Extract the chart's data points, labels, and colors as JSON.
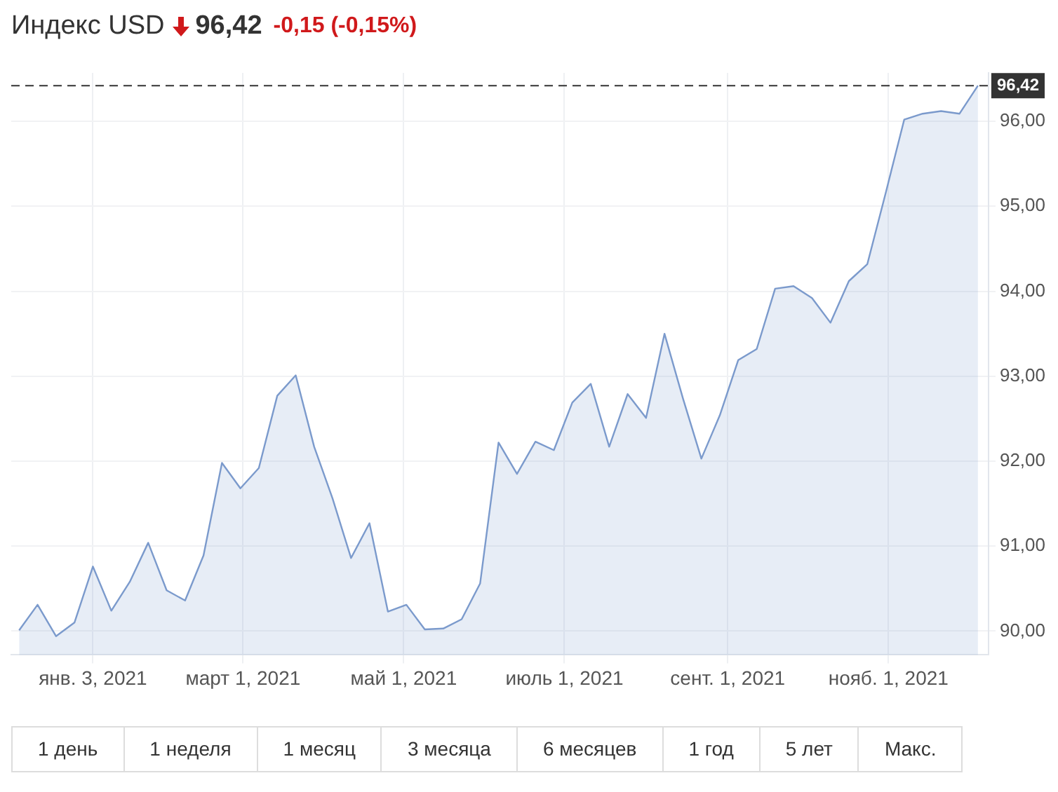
{
  "chart_data": {
    "type": "area",
    "title": "Индекс USD",
    "annotations": [
      "96,42",
      "-0,15 (-0,15%)",
      "1 день",
      "1 неделя",
      "1 месяц",
      "3 месяца",
      "6 месяцев",
      "1 год",
      "5 лет",
      "Макс."
    ],
    "x": [
      "2020-12-06",
      "2020-12-13",
      "2020-12-20",
      "2020-12-27",
      "2021-01-03",
      "2021-01-10",
      "2021-01-17",
      "2021-01-24",
      "2021-01-31",
      "2021-02-07",
      "2021-02-14",
      "2021-02-21",
      "2021-02-28",
      "2021-03-07",
      "2021-03-14",
      "2021-03-21",
      "2021-03-28",
      "2021-04-04",
      "2021-04-11",
      "2021-04-18",
      "2021-04-25",
      "2021-05-02",
      "2021-05-09",
      "2021-05-16",
      "2021-05-23",
      "2021-05-30",
      "2021-06-06",
      "2021-06-13",
      "2021-06-20",
      "2021-06-27",
      "2021-07-04",
      "2021-07-11",
      "2021-07-18",
      "2021-07-25",
      "2021-08-01",
      "2021-08-08",
      "2021-08-15",
      "2021-08-22",
      "2021-08-29",
      "2021-09-05",
      "2021-09-12",
      "2021-09-19",
      "2021-09-26",
      "2021-10-03",
      "2021-10-10",
      "2021-10-17",
      "2021-10-24",
      "2021-10-31",
      "2021-11-07",
      "2021-11-14",
      "2021-11-21",
      "2021-11-28",
      "2021-12-05"
    ],
    "series": [
      {
        "color": "#7b9acc",
        "values": [
          90.01,
          90.31,
          89.94,
          90.1,
          90.76,
          90.24,
          90.58,
          91.04,
          90.48,
          90.36,
          90.89,
          91.98,
          91.68,
          91.92,
          92.77,
          93.01,
          92.17,
          91.56,
          90.86,
          91.27,
          90.23,
          90.31,
          90.02,
          90.03,
          90.14,
          90.56,
          92.22,
          91.85,
          92.23,
          92.13,
          92.69,
          92.91,
          92.17,
          92.79,
          92.51,
          93.5,
          92.74,
          92.03,
          92.54,
          93.19,
          93.32,
          94.03,
          94.06,
          93.92,
          93.63,
          94.12,
          94.32,
          95.16,
          96.02,
          96.09,
          96.12,
          96.09,
          96.42
        ]
      }
    ],
    "xlim": [
      "2020-12-03",
      "2021-12-09"
    ],
    "xticks": [
      {
        "value": "2021-01-03",
        "label": "янв. 3, 2021"
      },
      {
        "value": "2021-03-01",
        "label": "март 1, 2021"
      },
      {
        "value": "2021-05-01",
        "label": "май 1, 2021"
      },
      {
        "value": "2021-07-01",
        "label": "июль 1, 2021"
      },
      {
        "value": "2021-09-01",
        "label": "сент. 1, 2021"
      },
      {
        "value": "2021-11-01",
        "label": "нояб. 1, 2021"
      }
    ],
    "ylim": [
      89.72,
      96.57
    ],
    "yticks": [
      {
        "value": 90,
        "label": "90,00"
      },
      {
        "value": 91,
        "label": "91,00"
      },
      {
        "value": 92,
        "label": "92,00"
      },
      {
        "value": 93,
        "label": "93,00"
      },
      {
        "value": 94,
        "label": "94,00"
      },
      {
        "value": 95,
        "label": "95,00"
      },
      {
        "value": 96,
        "label": "96,00"
      }
    ],
    "ref_lines": [
      {
        "axis": "y",
        "value": 96.42,
        "label": "96,42",
        "color": "#333333",
        "line_style": "dashed"
      }
    ],
    "grid": true,
    "legend": false,
    "marker": "none"
  }
}
